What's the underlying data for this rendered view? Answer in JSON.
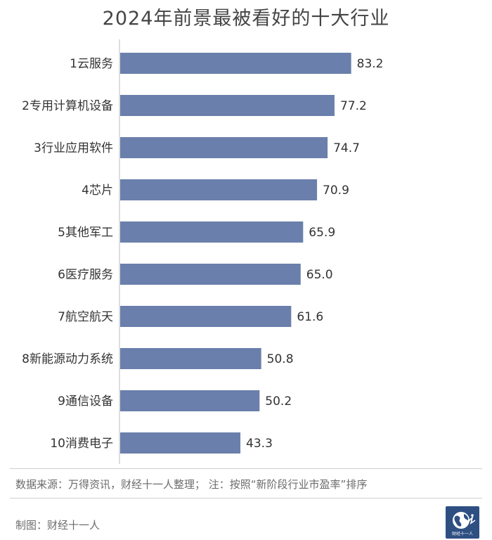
{
  "chart_data": {
    "type": "bar",
    "orientation": "horizontal",
    "title": "2024年前景最被看好的十大行业",
    "categories": [
      "1云服务",
      "2专用计算机设备",
      "3行业应用软件",
      "4芯片",
      "5其他军工",
      "6医疗服务",
      "7航空航天",
      "8新能源动力系统",
      "9通信设备",
      "10消费电子"
    ],
    "values": [
      83.2,
      77.2,
      74.7,
      70.9,
      65.9,
      65.0,
      61.6,
      50.8,
      50.2,
      43.3
    ],
    "value_labels": [
      "83.2",
      "77.2",
      "74.7",
      "70.9",
      "65.9",
      "65.0",
      "61.6",
      "50.8",
      "50.2",
      "43.3"
    ],
    "xlim": [
      0,
      100
    ],
    "bar_color": "#6a7fab",
    "grid": false
  },
  "footer": {
    "source": "数据来源：万得资讯，财经十一人整理；  注：按照“新阶段行业市盈率”排序",
    "credit": "制图：财经十一人"
  },
  "logo": {
    "text": "财经十一人",
    "icon": "globe-icon"
  }
}
